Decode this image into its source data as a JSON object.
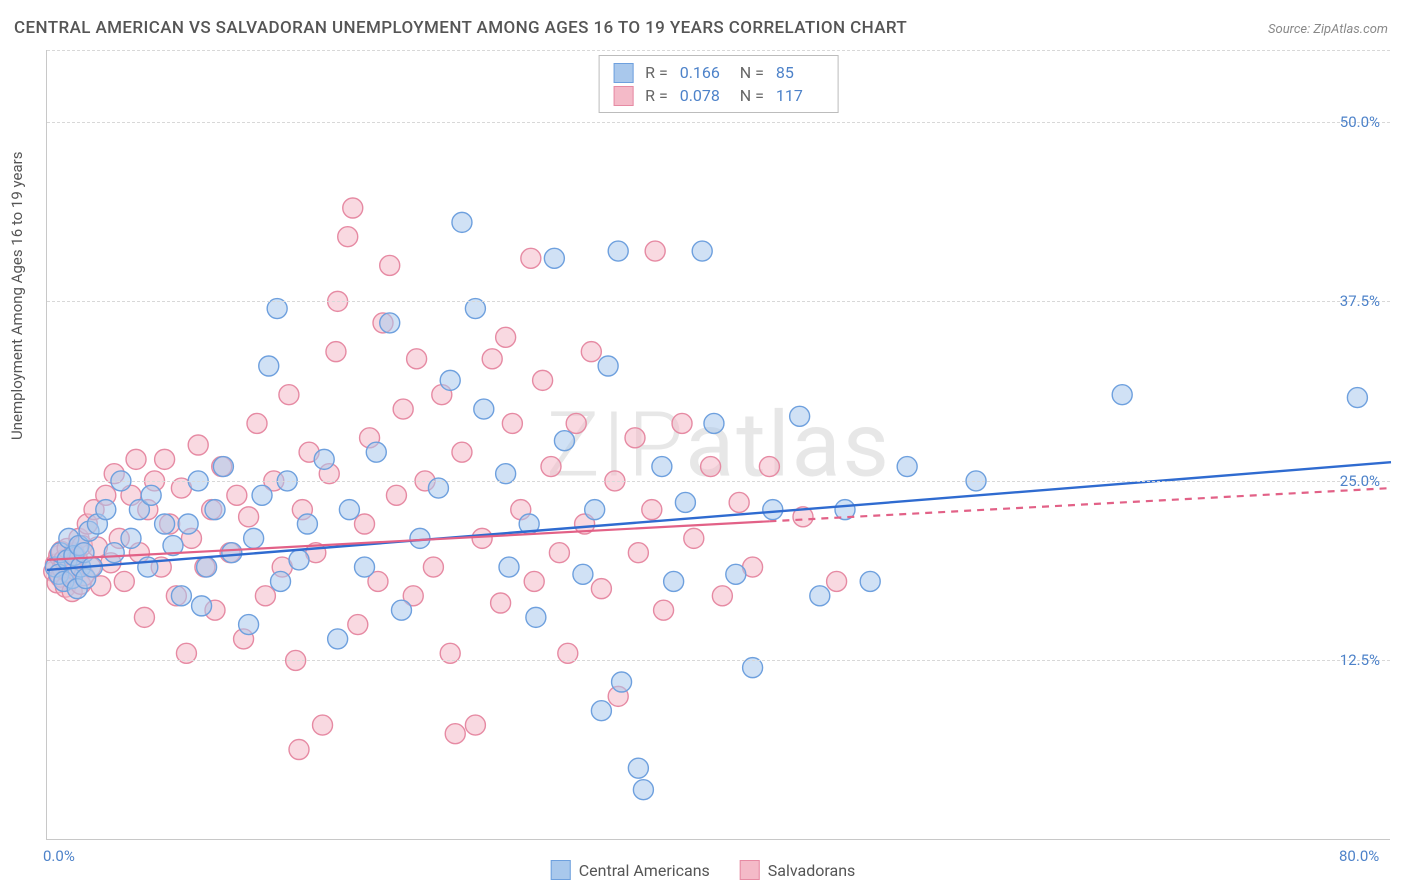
{
  "chart": {
    "type": "scatter",
    "title": "CENTRAL AMERICAN VS SALVADORAN UNEMPLOYMENT AMONG AGES 16 TO 19 YEARS CORRELATION CHART",
    "source": "Source: ZipAtlas.com",
    "watermark": "ZIPatlas",
    "y_axis_label": "Unemployment Among Ages 16 to 19 years",
    "xlim": [
      0,
      80
    ],
    "ylim": [
      0,
      55
    ],
    "x_ticks": [
      {
        "v": 0,
        "l": "0.0%"
      },
      {
        "v": 80,
        "l": "80.0%"
      }
    ],
    "y_ticks": [
      {
        "v": 12.5,
        "l": "12.5%"
      },
      {
        "v": 25,
        "l": "25.0%"
      },
      {
        "v": 37.5,
        "l": "37.5%"
      },
      {
        "v": 50,
        "l": "50.0%"
      }
    ],
    "grid_color": "#d8d8d8",
    "background_color": "#ffffff",
    "axis_color": "#c8c8c8",
    "label_color": "#4d82c9",
    "title_color": "#555555",
    "marker_radius": 10,
    "marker_opacity": 0.55,
    "marker_stroke_width": 1.4,
    "series": [
      {
        "name": "Central Americans",
        "legend_label": "Central Americans",
        "fill": "#a9c8ec",
        "stroke": "#6ea0de",
        "R": "0.166",
        "N": "85",
        "trend": {
          "x1": 0,
          "y1": 18.8,
          "x2": 80,
          "y2": 26.3,
          "color": "#2f6bd0",
          "width": 2.4,
          "dash_after_x": null
        },
        "points": [
          [
            0.5,
            19
          ],
          [
            0.7,
            18.5
          ],
          [
            0.8,
            20
          ],
          [
            1,
            18
          ],
          [
            1.2,
            19.5
          ],
          [
            1.3,
            21
          ],
          [
            1.5,
            18.2
          ],
          [
            1.6,
            19.8
          ],
          [
            1.8,
            17.5
          ],
          [
            1.9,
            20.5
          ],
          [
            2,
            19
          ],
          [
            2.2,
            20
          ],
          [
            2.3,
            18.2
          ],
          [
            2.5,
            21.5
          ],
          [
            2.7,
            19
          ],
          [
            3,
            22
          ],
          [
            3.5,
            23
          ],
          [
            4,
            20
          ],
          [
            4.4,
            25
          ],
          [
            5,
            21
          ],
          [
            5.5,
            23
          ],
          [
            6,
            19
          ],
          [
            6.2,
            24
          ],
          [
            7,
            22
          ],
          [
            7.5,
            20.5
          ],
          [
            8,
            17
          ],
          [
            8.4,
            22
          ],
          [
            9,
            25
          ],
          [
            9.5,
            19
          ],
          [
            10,
            23
          ],
          [
            10.5,
            26
          ],
          [
            11,
            20
          ],
          [
            12,
            15
          ],
          [
            12.3,
            21
          ],
          [
            12.8,
            24
          ],
          [
            13.2,
            33
          ],
          [
            13.9,
            18
          ],
          [
            14.3,
            25
          ],
          [
            15,
            19.5
          ],
          [
            15.5,
            22
          ],
          [
            16.5,
            26.5
          ],
          [
            17.3,
            14
          ],
          [
            18,
            23
          ],
          [
            18.9,
            19
          ],
          [
            19.6,
            27
          ],
          [
            20.4,
            36
          ],
          [
            21.1,
            16
          ],
          [
            22.2,
            21
          ],
          [
            23.3,
            24.5
          ],
          [
            24,
            32
          ],
          [
            24.7,
            43
          ],
          [
            25.5,
            37
          ],
          [
            26,
            30
          ],
          [
            27.3,
            25.5
          ],
          [
            27.5,
            19
          ],
          [
            28.7,
            22
          ],
          [
            29.1,
            15.5
          ],
          [
            30.2,
            40.5
          ],
          [
            30.8,
            27.8
          ],
          [
            31.9,
            18.5
          ],
          [
            32.6,
            23
          ],
          [
            33,
            9
          ],
          [
            33.4,
            33
          ],
          [
            34,
            41
          ],
          [
            34.2,
            11
          ],
          [
            35.2,
            5
          ],
          [
            35.5,
            3.5
          ],
          [
            36.6,
            26
          ],
          [
            37.3,
            18
          ],
          [
            38,
            23.5
          ],
          [
            39,
            41
          ],
          [
            39.7,
            29
          ],
          [
            41,
            18.5
          ],
          [
            42,
            12
          ],
          [
            43.2,
            23
          ],
          [
            44.8,
            29.5
          ],
          [
            46,
            17
          ],
          [
            47.5,
            23
          ],
          [
            49,
            18
          ],
          [
            51.2,
            26
          ],
          [
            55.3,
            25
          ],
          [
            64,
            31
          ],
          [
            78,
            30.8
          ],
          [
            9.2,
            16.3
          ],
          [
            13.7,
            37
          ]
        ]
      },
      {
        "name": "Salvadorans",
        "legend_label": "Salvadorans",
        "fill": "#f4bac8",
        "stroke": "#e68aa3",
        "R": "0.078",
        "N": "117",
        "trend": {
          "x1": 0,
          "y1": 19.5,
          "x2": 80,
          "y2": 24.5,
          "color": "#e26187",
          "width": 2.2,
          "dash_after_x": 43
        },
        "points": [
          [
            0.4,
            18.7
          ],
          [
            0.5,
            19.2
          ],
          [
            0.6,
            17.9
          ],
          [
            0.7,
            19.8
          ],
          [
            0.8,
            18.3
          ],
          [
            0.85,
            20.1
          ],
          [
            0.9,
            18.9
          ],
          [
            1,
            19.5
          ],
          [
            1.1,
            17.6
          ],
          [
            1.2,
            20.3
          ],
          [
            1.3,
            18.6
          ],
          [
            1.4,
            19.1
          ],
          [
            1.5,
            17.3
          ],
          [
            1.6,
            20
          ],
          [
            1.7,
            18.8
          ],
          [
            1.8,
            19.6
          ],
          [
            1.9,
            21
          ],
          [
            2,
            17.8
          ],
          [
            2.1,
            20.5
          ],
          [
            2.2,
            18.4
          ],
          [
            2.4,
            22
          ],
          [
            2.6,
            19
          ],
          [
            2.8,
            23
          ],
          [
            3,
            20.4
          ],
          [
            3.2,
            17.7
          ],
          [
            3.5,
            24
          ],
          [
            3.8,
            19.3
          ],
          [
            4,
            25.5
          ],
          [
            4.3,
            21
          ],
          [
            4.6,
            18
          ],
          [
            5,
            24
          ],
          [
            5.3,
            26.5
          ],
          [
            5.5,
            20
          ],
          [
            5.8,
            15.5
          ],
          [
            6,
            23
          ],
          [
            6.4,
            25
          ],
          [
            6.8,
            19
          ],
          [
            7,
            26.5
          ],
          [
            7.3,
            22
          ],
          [
            7.7,
            17
          ],
          [
            8,
            24.5
          ],
          [
            8.3,
            13
          ],
          [
            8.6,
            21
          ],
          [
            9,
            27.5
          ],
          [
            9.4,
            19
          ],
          [
            9.8,
            23
          ],
          [
            10,
            16
          ],
          [
            10.4,
            26
          ],
          [
            10.9,
            20
          ],
          [
            11.3,
            24
          ],
          [
            11.7,
            14
          ],
          [
            12,
            22.5
          ],
          [
            12.5,
            29
          ],
          [
            13,
            17
          ],
          [
            13.5,
            25
          ],
          [
            14,
            19
          ],
          [
            14.4,
            31
          ],
          [
            14.8,
            12.5
          ],
          [
            15,
            6.3
          ],
          [
            15.2,
            23
          ],
          [
            15.6,
            27
          ],
          [
            16,
            20
          ],
          [
            16.4,
            8
          ],
          [
            16.8,
            25.5
          ],
          [
            17.2,
            34
          ],
          [
            17.3,
            37.5
          ],
          [
            17.9,
            42
          ],
          [
            18.2,
            44
          ],
          [
            18.5,
            15
          ],
          [
            18.9,
            22
          ],
          [
            19.2,
            28
          ],
          [
            19.7,
            18
          ],
          [
            20,
            36
          ],
          [
            20.4,
            40
          ],
          [
            20.8,
            24
          ],
          [
            21.2,
            30
          ],
          [
            21.8,
            17
          ],
          [
            22,
            33.5
          ],
          [
            22.5,
            25
          ],
          [
            23,
            19
          ],
          [
            23.5,
            31
          ],
          [
            24,
            13
          ],
          [
            24.3,
            7.4
          ],
          [
            24.7,
            27
          ],
          [
            25.5,
            8
          ],
          [
            25.9,
            21
          ],
          [
            26.5,
            33.5
          ],
          [
            27,
            16.5
          ],
          [
            27.3,
            35
          ],
          [
            27.7,
            29
          ],
          [
            28.2,
            23
          ],
          [
            28.8,
            40.5
          ],
          [
            29,
            18
          ],
          [
            29.5,
            32
          ],
          [
            30,
            26
          ],
          [
            30.5,
            20
          ],
          [
            31,
            13
          ],
          [
            31.5,
            29
          ],
          [
            32,
            22
          ],
          [
            32.4,
            34
          ],
          [
            33,
            17.5
          ],
          [
            33.8,
            25
          ],
          [
            34,
            10
          ],
          [
            35,
            28
          ],
          [
            35.2,
            20
          ],
          [
            36,
            23
          ],
          [
            36.2,
            41
          ],
          [
            36.7,
            16
          ],
          [
            37.8,
            29
          ],
          [
            38.5,
            21
          ],
          [
            39.5,
            26
          ],
          [
            40.2,
            17
          ],
          [
            41.2,
            23.5
          ],
          [
            42,
            19
          ],
          [
            43,
            26
          ],
          [
            45,
            22.5
          ],
          [
            47,
            18
          ]
        ]
      }
    ]
  }
}
